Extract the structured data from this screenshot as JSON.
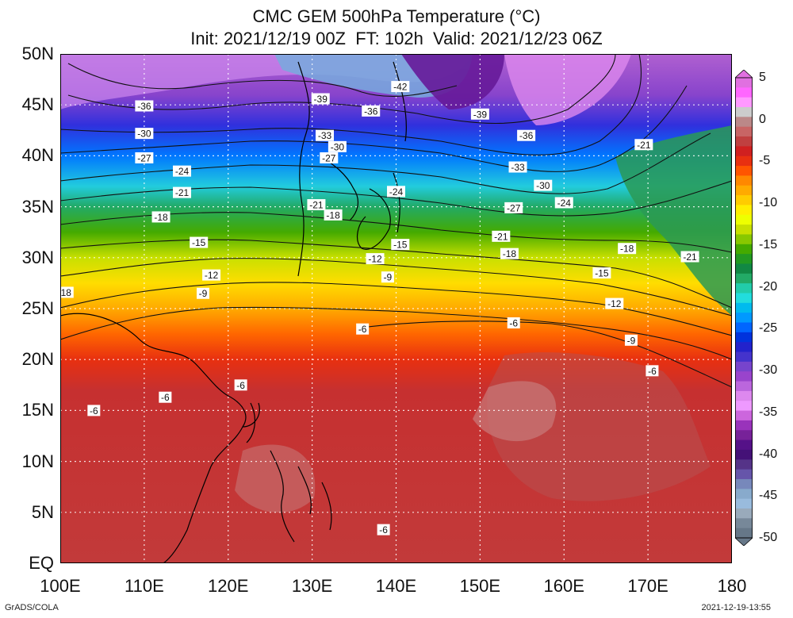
{
  "title": {
    "line1": "CMC GEM 500hPa Temperature (°C)",
    "line2": "Init: 2021/12/19 00Z  FT: 102h  Valid: 2021/12/23 06Z"
  },
  "lat_labels": [
    "50N",
    "45N",
    "40N",
    "35N",
    "30N",
    "25N",
    "20N",
    "15N",
    "10N",
    "5N",
    "EQ"
  ],
  "lon_labels": [
    "100E",
    "110E",
    "120E",
    "130E",
    "140E",
    "150E",
    "160E",
    "170E",
    "180"
  ],
  "colorbar": {
    "labels": [
      "5",
      "0",
      "-5",
      "-10",
      "-15",
      "-20",
      "-25",
      "-30",
      "-35",
      "-40",
      "-45",
      "-50"
    ],
    "colors": [
      "#e070e0",
      "#ff66ff",
      "#ff99ff",
      "#cccccc",
      "#bb8888",
      "#c86565",
      "#c04040",
      "#d02020",
      "#e83010",
      "#ff5500",
      "#ff8800",
      "#ffaa00",
      "#ffcc00",
      "#ffee00",
      "#eeff00",
      "#c8e000",
      "#88c800",
      "#44aa00",
      "#229922",
      "#118844",
      "#22aa66",
      "#22ccaa",
      "#22dddd",
      "#00bbee",
      "#0099ff",
      "#0066ff",
      "#0033dd",
      "#2222cc",
      "#4433cc",
      "#7744cc",
      "#9944cc",
      "#bb66dd",
      "#dd88ee",
      "#ee99ff",
      "#cc66dd",
      "#9933bb",
      "#772299",
      "#551188",
      "#441177",
      "#553388",
      "#6655aa",
      "#7788bb",
      "#88aacc",
      "#99bbdd",
      "#99aabb",
      "#778899",
      "#667788"
    ]
  },
  "contour_labels": [
    {
      "text": "-42",
      "lon": 140.5,
      "lat": 46.8
    },
    {
      "text": "-39",
      "lon": 131.0,
      "lat": 45.6
    },
    {
      "text": "-39",
      "lon": 150.0,
      "lat": 44.1
    },
    {
      "text": "-36",
      "lon": 110.0,
      "lat": 44.9
    },
    {
      "text": "-36",
      "lon": 137.0,
      "lat": 44.4
    },
    {
      "text": "-36",
      "lon": 155.5,
      "lat": 42.0
    },
    {
      "text": "-33",
      "lon": 131.5,
      "lat": 42.0
    },
    {
      "text": "-33",
      "lon": 154.5,
      "lat": 38.9
    },
    {
      "text": "-30",
      "lon": 110.0,
      "lat": 42.2
    },
    {
      "text": "-30",
      "lon": 133.0,
      "lat": 40.9
    },
    {
      "text": "-30",
      "lon": 157.5,
      "lat": 37.1
    },
    {
      "text": "-27",
      "lon": 110.0,
      "lat": 39.8
    },
    {
      "text": "-27",
      "lon": 132.0,
      "lat": 39.8
    },
    {
      "text": "-27",
      "lon": 154.0,
      "lat": 34.9
    },
    {
      "text": "-24",
      "lon": 114.5,
      "lat": 38.5
    },
    {
      "text": "-24",
      "lon": 140.0,
      "lat": 36.5
    },
    {
      "text": "-24",
      "lon": 160.0,
      "lat": 35.4
    },
    {
      "text": "-21",
      "lon": 114.5,
      "lat": 36.4
    },
    {
      "text": "-21",
      "lon": 130.5,
      "lat": 35.2
    },
    {
      "text": "-21",
      "lon": 152.5,
      "lat": 32.1
    },
    {
      "text": "-21",
      "lon": 169.5,
      "lat": 41.1
    },
    {
      "text": "-21",
      "lon": 175.0,
      "lat": 30.1
    },
    {
      "text": "-18",
      "lon": 112.0,
      "lat": 34.0
    },
    {
      "text": "-18",
      "lon": 132.5,
      "lat": 34.2
    },
    {
      "text": "-18",
      "lon": 153.5,
      "lat": 30.4
    },
    {
      "text": "-18",
      "lon": 167.5,
      "lat": 30.9
    },
    {
      "text": "-18",
      "lon": 100.5,
      "lat": 26.6
    },
    {
      "text": "-15",
      "lon": 116.5,
      "lat": 31.5
    },
    {
      "text": "-15",
      "lon": 140.5,
      "lat": 31.3
    },
    {
      "text": "-15",
      "lon": 164.5,
      "lat": 28.5
    },
    {
      "text": "-12",
      "lon": 118.0,
      "lat": 28.3
    },
    {
      "text": "-12",
      "lon": 137.5,
      "lat": 29.9
    },
    {
      "text": "-12",
      "lon": 166.0,
      "lat": 25.5
    },
    {
      "text": "-9",
      "lon": 117.0,
      "lat": 26.5
    },
    {
      "text": "-9",
      "lon": 139.0,
      "lat": 28.1
    },
    {
      "text": "-9",
      "lon": 168.0,
      "lat": 21.9
    },
    {
      "text": "-6",
      "lon": 136.0,
      "lat": 23.0
    },
    {
      "text": "-6",
      "lon": 154.0,
      "lat": 23.6
    },
    {
      "text": "-6",
      "lon": 170.5,
      "lat": 18.9
    },
    {
      "text": "-6",
      "lon": 112.5,
      "lat": 16.3
    },
    {
      "text": "-6",
      "lon": 121.5,
      "lat": 17.5
    },
    {
      "text": "-6",
      "lon": 104.0,
      "lat": 15.0
    },
    {
      "text": "-6",
      "lon": 138.5,
      "lat": 3.3
    }
  ],
  "footer": {
    "left": "GrADS/COLA",
    "right": "2021-12-19-13:55"
  }
}
